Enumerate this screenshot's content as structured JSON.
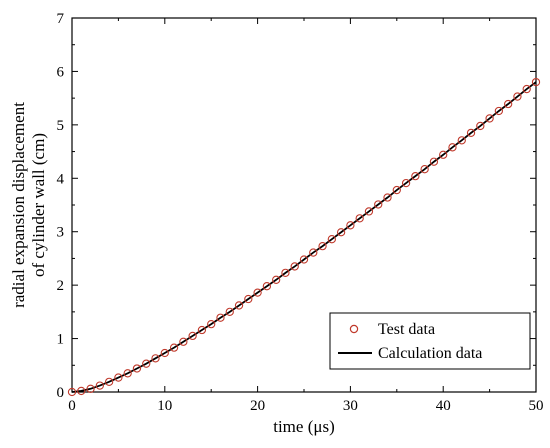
{
  "chart_data": {
    "type": "line",
    "title": "",
    "xlabel": "time (μs)",
    "ylabel_lines": [
      "radial expansion displacement",
      "of cylinder wall (cm)"
    ],
    "xlim": [
      0,
      50
    ],
    "ylim": [
      0,
      7
    ],
    "xticks": [
      0,
      10,
      20,
      30,
      40,
      50
    ],
    "yticks": [
      0,
      1,
      2,
      3,
      4,
      5,
      6,
      7
    ],
    "grid": false,
    "legend_position": "bottom-right",
    "series": [
      {
        "name": "Test data",
        "kind": "scatter",
        "marker": "open-circle",
        "color": "#c0392b",
        "x": [
          0,
          1,
          2,
          3,
          4,
          5,
          6,
          7,
          8,
          9,
          10,
          11,
          12,
          13,
          14,
          15,
          16,
          17,
          18,
          19,
          20,
          21,
          22,
          23,
          24,
          25,
          26,
          27,
          28,
          29,
          30,
          31,
          32,
          33,
          34,
          35,
          36,
          37,
          38,
          39,
          40,
          41,
          42,
          43,
          44,
          45,
          46,
          47,
          48,
          49,
          50
        ],
        "y": [
          0.0,
          0.02,
          0.06,
          0.12,
          0.19,
          0.27,
          0.35,
          0.44,
          0.53,
          0.63,
          0.73,
          0.83,
          0.94,
          1.05,
          1.16,
          1.27,
          1.39,
          1.5,
          1.62,
          1.74,
          1.86,
          1.98,
          2.1,
          2.23,
          2.35,
          2.48,
          2.61,
          2.73,
          2.86,
          2.99,
          3.12,
          3.25,
          3.38,
          3.51,
          3.64,
          3.78,
          3.91,
          4.04,
          4.17,
          4.31,
          4.44,
          4.58,
          4.71,
          4.85,
          4.98,
          5.12,
          5.26,
          5.39,
          5.53,
          5.67,
          5.8
        ]
      },
      {
        "name": "Calculation data",
        "kind": "line",
        "color": "#000000",
        "x": [
          0,
          1,
          2,
          3,
          4,
          5,
          6,
          7,
          8,
          9,
          10,
          11,
          12,
          13,
          14,
          15,
          16,
          17,
          18,
          19,
          20,
          21,
          22,
          23,
          24,
          25,
          26,
          27,
          28,
          29,
          30,
          31,
          32,
          33,
          34,
          35,
          36,
          37,
          38,
          39,
          40,
          41,
          42,
          43,
          44,
          45,
          46,
          47,
          48,
          49,
          50
        ],
        "y": [
          0.0,
          0.02,
          0.06,
          0.12,
          0.19,
          0.27,
          0.35,
          0.44,
          0.53,
          0.63,
          0.73,
          0.83,
          0.94,
          1.05,
          1.16,
          1.27,
          1.39,
          1.5,
          1.62,
          1.74,
          1.86,
          1.98,
          2.1,
          2.23,
          2.35,
          2.48,
          2.61,
          2.73,
          2.86,
          2.99,
          3.12,
          3.25,
          3.38,
          3.51,
          3.64,
          3.78,
          3.91,
          4.04,
          4.17,
          4.31,
          4.44,
          4.58,
          4.71,
          4.85,
          4.98,
          5.12,
          5.26,
          5.39,
          5.53,
          5.67,
          5.8
        ]
      }
    ]
  }
}
